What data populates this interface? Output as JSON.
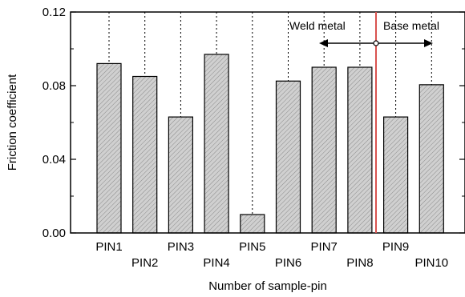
{
  "chart_data": {
    "type": "bar",
    "categories": [
      "PIN1",
      "PIN2",
      "PIN3",
      "PIN4",
      "PIN5",
      "PIN6",
      "PIN7",
      "PIN8",
      "PIN9",
      "PIN10"
    ],
    "values": [
      0.092,
      0.085,
      0.063,
      0.097,
      0.01,
      0.0825,
      0.09,
      0.09,
      0.063,
      0.0805
    ],
    "xlabel": "Number of sample-pin",
    "ylabel": "Friction coefficient",
    "ylim": [
      0,
      0.12
    ],
    "yticks": [
      "0.00",
      "0.04",
      "0.08",
      "0.12"
    ],
    "grid": "dotted leader lines from bar tops",
    "bar_fill": "#d0d0d0",
    "bar_hatch": "diagonal",
    "annotations": {
      "weld_metal": "Weld metal",
      "base_metal": "Base metal",
      "boundary_color": "#d9534f"
    }
  }
}
